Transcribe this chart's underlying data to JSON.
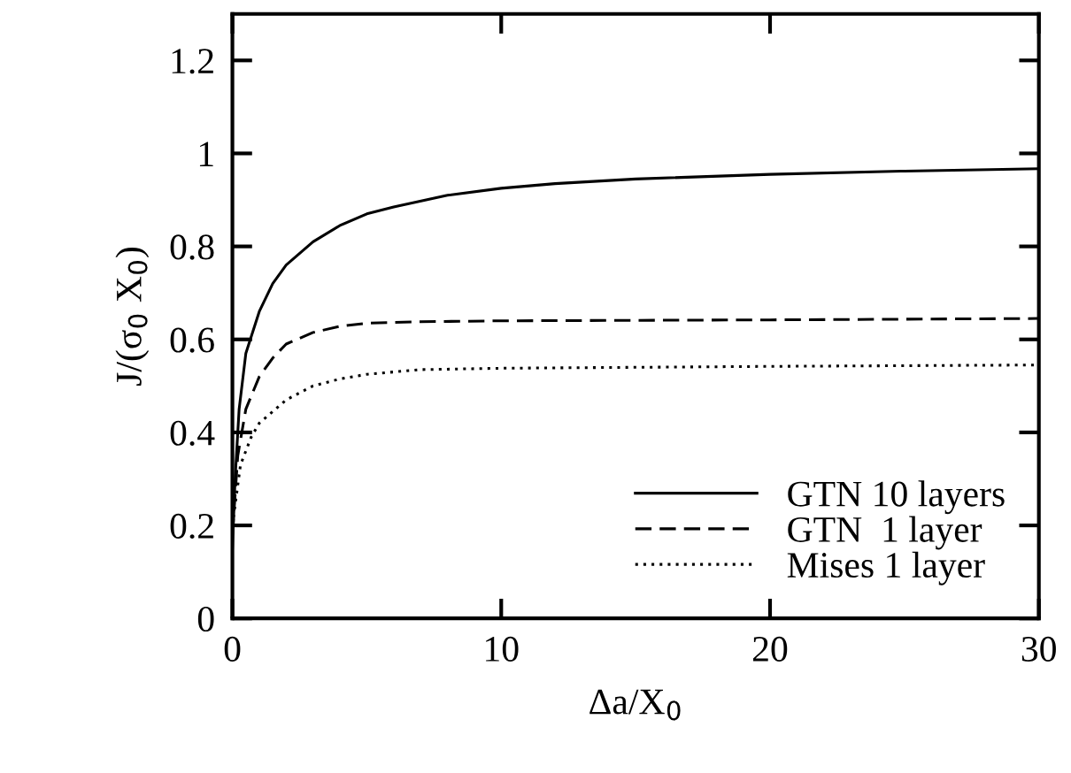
{
  "chart_data": {
    "type": "line",
    "xlabel": "Δa/X$_{0}$",
    "ylabel": "J/(σ$_{0}$ X$_{0}$)",
    "xlim": [
      0,
      30
    ],
    "xticks": [
      0,
      10,
      20,
      30
    ],
    "ylim": [
      0,
      1.3
    ],
    "yticks": [
      0,
      0.2,
      0.4,
      0.6,
      0.8,
      1,
      1.2
    ],
    "grid": false,
    "legend": "bottom right",
    "marker": "none",
    "series": [
      {
        "name": "GTN 10 layers",
        "color": "#000000",
        "line_style": "solid",
        "x": [
          0,
          0.1,
          0.25,
          0.5,
          1,
          1.5,
          2,
          3,
          4,
          5,
          6,
          8,
          10,
          12,
          15,
          20,
          25,
          30
        ],
        "values": [
          0.15,
          0.3,
          0.45,
          0.57,
          0.66,
          0.72,
          0.76,
          0.81,
          0.845,
          0.87,
          0.885,
          0.91,
          0.925,
          0.935,
          0.945,
          0.955,
          0.962,
          0.967
        ]
      },
      {
        "name": "GTN  1 layer",
        "color": "#000000",
        "line_style": "dashed",
        "x": [
          0,
          0.2,
          0.5,
          1,
          1.5,
          2,
          3,
          4,
          5,
          7,
          10,
          20,
          30
        ],
        "values": [
          0.18,
          0.35,
          0.45,
          0.52,
          0.56,
          0.59,
          0.615,
          0.628,
          0.635,
          0.638,
          0.64,
          0.642,
          0.645
        ]
      },
      {
        "name": "Mises 1 layer",
        "color": "#000000",
        "line_style": "dotted",
        "x": [
          0,
          0.3,
          0.7,
          1,
          2,
          3,
          4,
          5,
          7,
          10,
          20,
          30
        ],
        "values": [
          0.2,
          0.33,
          0.39,
          0.42,
          0.47,
          0.5,
          0.515,
          0.525,
          0.535,
          0.538,
          0.542,
          0.545
        ]
      }
    ]
  }
}
